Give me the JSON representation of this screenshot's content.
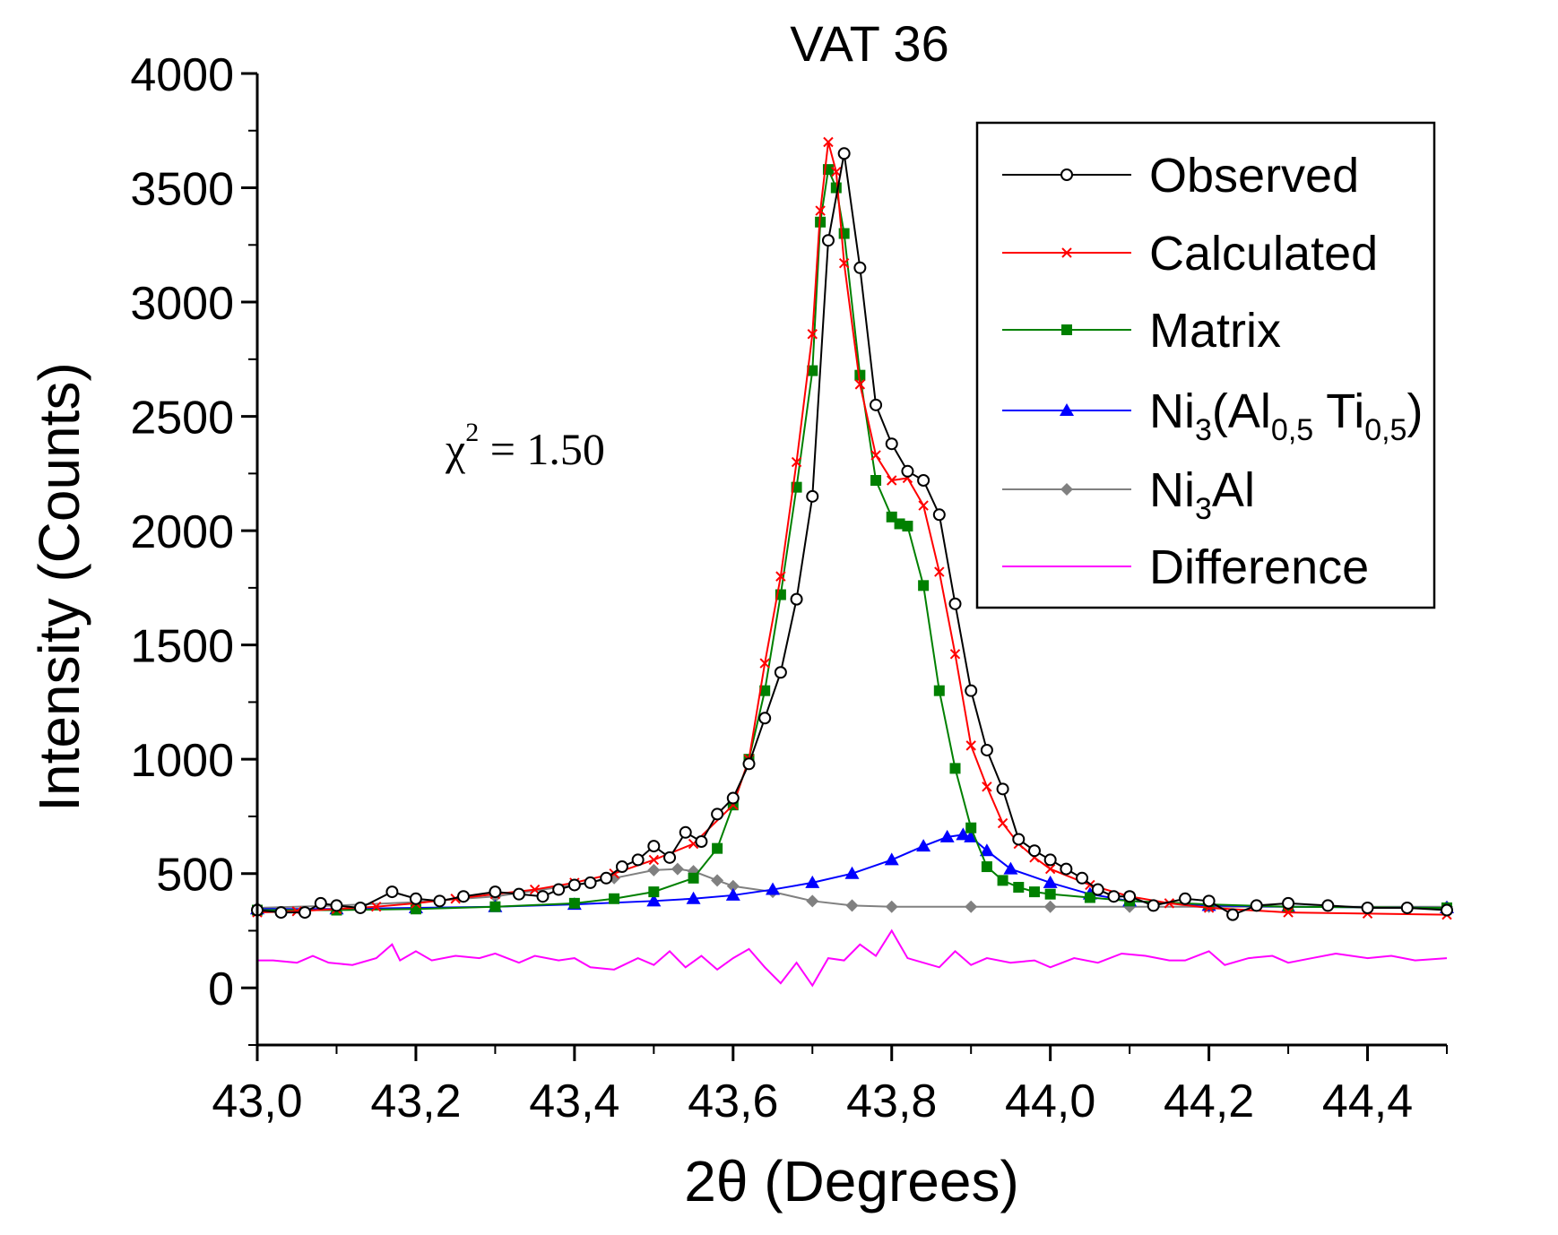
{
  "chart_data": {
    "type": "line",
    "title": "VAT 36",
    "xlabel": "2θ (Degrees)",
    "ylabel": "Intensity (Counts)",
    "xlim": [
      43.0,
      44.5
    ],
    "ylim": [
      -250,
      4000
    ],
    "x_ticks": [
      43.0,
      43.2,
      43.4,
      43.6,
      43.8,
      44.0,
      44.2,
      44.4
    ],
    "x_tick_labels": [
      "43,0",
      "43,2",
      "43,4",
      "43,6",
      "43,8",
      "44,0",
      "44,2",
      "44,4"
    ],
    "y_ticks": [
      0,
      500,
      1000,
      1500,
      2000,
      2500,
      3000,
      3500,
      4000
    ],
    "y_tick_labels": [
      "0",
      "500",
      "1000",
      "1500",
      "2000",
      "2500",
      "3000",
      "3500",
      "4000"
    ],
    "annotation": {
      "symbol": "χ",
      "superscript": "2",
      "text": " = 1.50"
    },
    "legend_position": "top-right",
    "series": [
      {
        "name": "Observed",
        "color": "#000000",
        "marker": "open-circle",
        "x": [
          43.0,
          43.03,
          43.06,
          43.08,
          43.1,
          43.13,
          43.17,
          43.2,
          43.23,
          43.26,
          43.3,
          43.33,
          43.36,
          43.38,
          43.4,
          43.42,
          43.44,
          43.46,
          43.48,
          43.5,
          43.52,
          43.54,
          43.56,
          43.58,
          43.6,
          43.62,
          43.64,
          43.66,
          43.68,
          43.7,
          43.72,
          43.74,
          43.76,
          43.78,
          43.8,
          43.82,
          43.84,
          43.86,
          43.88,
          43.9,
          43.92,
          43.94,
          43.96,
          43.98,
          44.0,
          44.02,
          44.04,
          44.06,
          44.08,
          44.1,
          44.13,
          44.17,
          44.2,
          44.23,
          44.26,
          44.3,
          44.35,
          44.4,
          44.45,
          44.5
        ],
        "values": [
          340,
          330,
          330,
          370,
          360,
          350,
          420,
          390,
          380,
          400,
          420,
          410,
          400,
          430,
          450,
          460,
          480,
          530,
          560,
          620,
          570,
          680,
          640,
          760,
          830,
          980,
          1180,
          1380,
          1700,
          2150,
          3270,
          3650,
          3150,
          2550,
          2380,
          2260,
          2220,
          2070,
          1680,
          1300,
          1040,
          870,
          650,
          600,
          560,
          520,
          480,
          430,
          400,
          400,
          360,
          390,
          380,
          320,
          360,
          370,
          360,
          350,
          350,
          340
        ]
      },
      {
        "name": "Calculated",
        "color": "#ff0000",
        "marker": "x",
        "x": [
          43.0,
          43.05,
          43.1,
          43.15,
          43.2,
          43.25,
          43.3,
          43.35,
          43.4,
          43.45,
          43.5,
          43.55,
          43.6,
          43.62,
          43.64,
          43.66,
          43.68,
          43.7,
          43.71,
          43.72,
          43.73,
          43.74,
          43.76,
          43.78,
          43.8,
          43.82,
          43.84,
          43.86,
          43.88,
          43.9,
          43.92,
          43.94,
          43.96,
          43.98,
          44.0,
          44.05,
          44.1,
          44.15,
          44.2,
          44.3,
          44.4,
          44.5
        ],
        "values": [
          330,
          335,
          345,
          355,
          370,
          390,
          410,
          430,
          460,
          500,
          560,
          630,
          800,
          1000,
          1420,
          1800,
          2300,
          2860,
          3400,
          3700,
          3570,
          3170,
          2640,
          2330,
          2220,
          2230,
          2110,
          1820,
          1460,
          1060,
          880,
          720,
          630,
          570,
          520,
          450,
          400,
          370,
          350,
          330,
          325,
          320
        ]
      },
      {
        "name": "Matrix",
        "color": "#008000",
        "marker": "filled-square",
        "x": [
          43.0,
          43.1,
          43.2,
          43.3,
          43.4,
          43.45,
          43.5,
          43.55,
          43.58,
          43.6,
          43.62,
          43.64,
          43.66,
          43.68,
          43.7,
          43.71,
          43.72,
          43.73,
          43.74,
          43.76,
          43.78,
          43.8,
          43.81,
          43.82,
          43.84,
          43.86,
          43.88,
          43.9,
          43.92,
          43.94,
          43.96,
          43.98,
          44.0,
          44.05,
          44.1,
          44.2,
          44.3,
          44.5
        ],
        "values": [
          340,
          340,
          345,
          355,
          370,
          390,
          420,
          480,
          610,
          800,
          1000,
          1300,
          1720,
          2190,
          2700,
          3350,
          3580,
          3500,
          3300,
          2680,
          2220,
          2060,
          2030,
          2020,
          1760,
          1300,
          960,
          700,
          530,
          470,
          440,
          420,
          410,
          395,
          380,
          365,
          355,
          350
        ]
      },
      {
        "name": "Ni3(Al0,5 Ti0,5)",
        "color": "#0000ff",
        "marker": "filled-triangle",
        "x": [
          43.0,
          43.1,
          43.2,
          43.3,
          43.4,
          43.5,
          43.55,
          43.6,
          43.65,
          43.7,
          43.75,
          43.8,
          43.84,
          43.87,
          43.89,
          43.9,
          43.92,
          43.95,
          44.0,
          44.05,
          44.1,
          44.2,
          44.3,
          44.5
        ],
        "values": [
          345,
          345,
          350,
          355,
          365,
          380,
          390,
          405,
          430,
          460,
          500,
          560,
          620,
          660,
          670,
          660,
          600,
          520,
          460,
          410,
          380,
          360,
          355,
          350
        ]
      },
      {
        "name": "Ni3Al",
        "color": "#808080",
        "marker": "filled-diamond",
        "x": [
          43.0,
          43.1,
          43.2,
          43.3,
          43.4,
          43.45,
          43.5,
          43.53,
          43.55,
          43.58,
          43.6,
          43.65,
          43.7,
          43.75,
          43.8,
          43.9,
          44.0,
          44.1,
          44.2,
          44.3,
          44.5
        ],
        "values": [
          350,
          360,
          375,
          400,
          450,
          480,
          515,
          520,
          510,
          470,
          445,
          420,
          380,
          360,
          355,
          355,
          355,
          355,
          355,
          355,
          355
        ]
      },
      {
        "name": "Difference",
        "color": "#ff00ff",
        "marker": "none",
        "x": [
          43.0,
          43.02,
          43.05,
          43.07,
          43.09,
          43.12,
          43.15,
          43.17,
          43.18,
          43.2,
          43.22,
          43.25,
          43.28,
          43.3,
          43.33,
          43.35,
          43.38,
          43.4,
          43.42,
          43.45,
          43.48,
          43.5,
          43.52,
          43.54,
          43.56,
          43.58,
          43.6,
          43.62,
          43.64,
          43.66,
          43.68,
          43.7,
          43.72,
          43.74,
          43.76,
          43.78,
          43.8,
          43.82,
          43.84,
          43.86,
          43.88,
          43.9,
          43.92,
          43.95,
          43.98,
          44.0,
          44.03,
          44.06,
          44.09,
          44.12,
          44.15,
          44.17,
          44.2,
          44.22,
          44.25,
          44.28,
          44.3,
          44.33,
          44.36,
          44.4,
          44.43,
          44.46,
          44.5
        ],
        "values": [
          120,
          120,
          110,
          140,
          110,
          100,
          130,
          190,
          120,
          160,
          120,
          140,
          130,
          150,
          110,
          140,
          120,
          130,
          90,
          80,
          130,
          100,
          160,
          90,
          140,
          80,
          130,
          170,
          90,
          20,
          110,
          10,
          130,
          120,
          190,
          140,
          250,
          130,
          110,
          90,
          160,
          100,
          130,
          110,
          120,
          90,
          130,
          110,
          150,
          140,
          120,
          120,
          160,
          100,
          130,
          140,
          110,
          130,
          150,
          130,
          140,
          120,
          130
        ]
      }
    ]
  }
}
